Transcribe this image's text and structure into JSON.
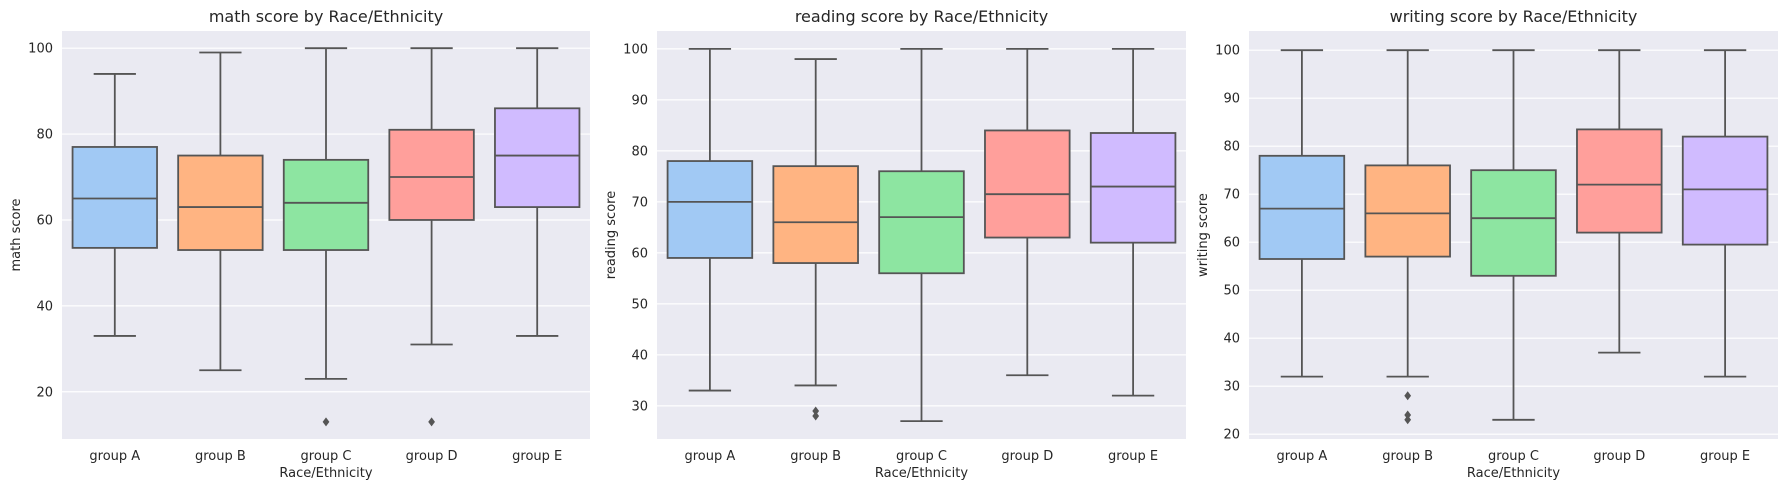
{
  "chart_data": [
    {
      "type": "box",
      "title": "math score by Race/Ethnicity",
      "xlabel": "Race/Ethnicity",
      "ylabel": "math score",
      "categories": [
        "group A",
        "group B",
        "group C",
        "group D",
        "group E"
      ],
      "ylim": [
        9,
        104
      ],
      "yticks": [
        20,
        40,
        60,
        80,
        100
      ],
      "boxes": [
        {
          "whisker_low": 33,
          "q1": 53.5,
          "median": 65,
          "q3": 77,
          "whisker_high": 94,
          "outliers": []
        },
        {
          "whisker_low": 25,
          "q1": 53,
          "median": 63,
          "q3": 75,
          "whisker_high": 99,
          "outliers": []
        },
        {
          "whisker_low": 23,
          "q1": 53,
          "median": 64,
          "q3": 74,
          "whisker_high": 100,
          "outliers": [
            13
          ]
        },
        {
          "whisker_low": 31,
          "q1": 60,
          "median": 70,
          "q3": 81,
          "whisker_high": 100,
          "outliers": [
            13
          ]
        },
        {
          "whisker_low": 33,
          "q1": 63,
          "median": 75,
          "q3": 86,
          "whisker_high": 100,
          "outliers": []
        }
      ],
      "grid": true
    },
    {
      "type": "box",
      "title": "reading score by Race/Ethnicity",
      "xlabel": "Race/Ethnicity",
      "ylabel": "reading score",
      "categories": [
        "group A",
        "group B",
        "group C",
        "group D",
        "group E"
      ],
      "ylim": [
        23.5,
        103.5
      ],
      "yticks": [
        30,
        40,
        50,
        60,
        70,
        80,
        90,
        100
      ],
      "boxes": [
        {
          "whisker_low": 33,
          "q1": 59,
          "median": 70,
          "q3": 78,
          "whisker_high": 100,
          "outliers": []
        },
        {
          "whisker_low": 34,
          "q1": 58,
          "median": 66,
          "q3": 77,
          "whisker_high": 98,
          "outliers": [
            28,
            29
          ]
        },
        {
          "whisker_low": 27,
          "q1": 56,
          "median": 67,
          "q3": 76,
          "whisker_high": 100,
          "outliers": []
        },
        {
          "whisker_low": 36,
          "q1": 63,
          "median": 71.5,
          "q3": 84,
          "whisker_high": 100,
          "outliers": []
        },
        {
          "whisker_low": 32,
          "q1": 62,
          "median": 73,
          "q3": 83.5,
          "whisker_high": 100,
          "outliers": []
        }
      ],
      "grid": true
    },
    {
      "type": "box",
      "title": "writing score by Race/Ethnicity",
      "xlabel": "Race/Ethnicity",
      "ylabel": "writing score",
      "categories": [
        "group A",
        "group B",
        "group C",
        "group D",
        "group E"
      ],
      "ylim": [
        19,
        104
      ],
      "yticks": [
        20,
        30,
        40,
        50,
        60,
        70,
        80,
        90,
        100
      ],
      "boxes": [
        {
          "whisker_low": 32,
          "q1": 56.5,
          "median": 67,
          "q3": 78,
          "whisker_high": 100,
          "outliers": []
        },
        {
          "whisker_low": 32,
          "q1": 57,
          "median": 66,
          "q3": 76,
          "whisker_high": 100,
          "outliers": [
            23,
            24,
            28
          ]
        },
        {
          "whisker_low": 23,
          "q1": 53,
          "median": 65,
          "q3": 75,
          "whisker_high": 100,
          "outliers": []
        },
        {
          "whisker_low": 37,
          "q1": 62,
          "median": 72,
          "q3": 83.5,
          "whisker_high": 100,
          "outliers": []
        },
        {
          "whisker_low": 32,
          "q1": 59.5,
          "median": 71,
          "q3": 82,
          "whisker_high": 100,
          "outliers": []
        }
      ],
      "grid": true
    }
  ],
  "style": {
    "plot_background": "#eaeaf2",
    "grid_color": "#ffffff",
    "line_color": "#555555",
    "box_colors": [
      "#a1c9f4",
      "#ffb482",
      "#8de5a1",
      "#ff9f9b",
      "#d0bbff"
    ]
  }
}
